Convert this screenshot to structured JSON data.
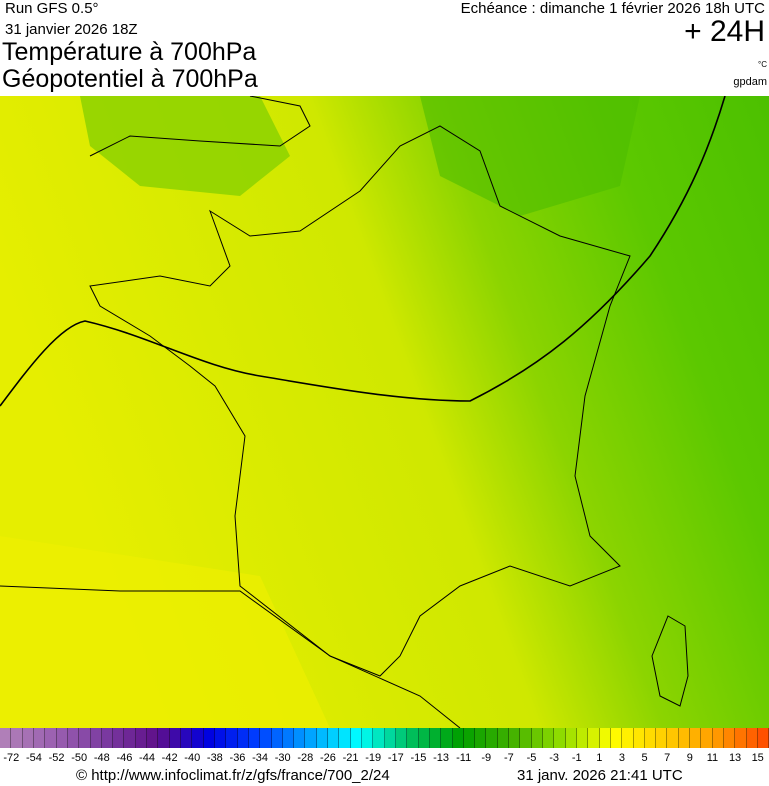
{
  "header": {
    "run": "Run GFS 0.5°",
    "run_date": "31 janvier 2026 18Z",
    "title_line1": "Température à 700hPa",
    "title_line2": "Géopotentiel à 700hPa",
    "valid_time": "Echéance : dimanche 1 février 2026 18h UTC",
    "lead_time": "+ 24H",
    "unit_temperature": "°C",
    "unit_geopotential": "gpdam"
  },
  "map": {
    "region": "France",
    "field_colors": {
      "west_yellow": "#e6ee00",
      "center_yellowgreen": "#c8e600",
      "east_green": "#5cc800",
      "northeast_green": "#3cb400"
    },
    "isohypse_color": "#000000"
  },
  "colorbar": {
    "labels": [
      "-72",
      "-54",
      "-52",
      "-50",
      "-48",
      "-46",
      "-44",
      "-42",
      "-40",
      "-38",
      "-36",
      "-34",
      "-30",
      "-28",
      "-26",
      "-21",
      "-19",
      "-17",
      "-15",
      "-13",
      "-11",
      "-9",
      "-7",
      "-5",
      "-3",
      "-1",
      "1",
      "3",
      "5",
      "7",
      "9",
      "11",
      "13",
      "15"
    ],
    "color_stops": [
      "#b07fb8",
      "#9a5fb0",
      "#7a3aa0",
      "#60108a",
      "#0000e0",
      "#0040ff",
      "#00a0ff",
      "#00ffff",
      "#00c060",
      "#00a000",
      "#40b000",
      "#90dc00",
      "#ffff00",
      "#ffd000",
      "#ffa000",
      "#ff5000"
    ]
  },
  "footer": {
    "url": "© http://www.infoclimat.fr/z/gfs/france/700_2/24",
    "generated": "31 janv. 2026 21:41 UTC"
  }
}
